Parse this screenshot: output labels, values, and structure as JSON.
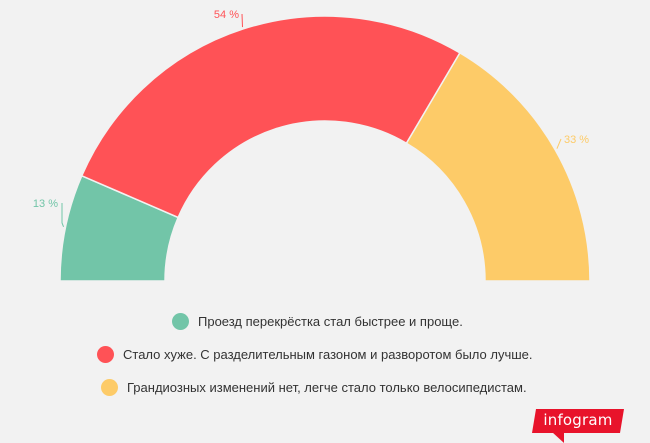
{
  "chart_data": {
    "type": "pie",
    "variant": "semi-donut",
    "series": [
      {
        "name": "Проезд перекрёстка стал быстрее и проще.",
        "value": 13,
        "label": "13 %",
        "color": "#72c5a8"
      },
      {
        "name": "Стало хуже. С разделительным газоном и разворотом было лучше.",
        "value": 54,
        "label": "54 %",
        "color": "#ff5256"
      },
      {
        "name": "Грандиозных изменений нет, легче стало только велосипедистам.",
        "value": 33,
        "label": "33 %",
        "color": "#fdcb68"
      }
    ],
    "legend_position": "bottom-center"
  },
  "branding": {
    "logo_text": "infogram"
  }
}
